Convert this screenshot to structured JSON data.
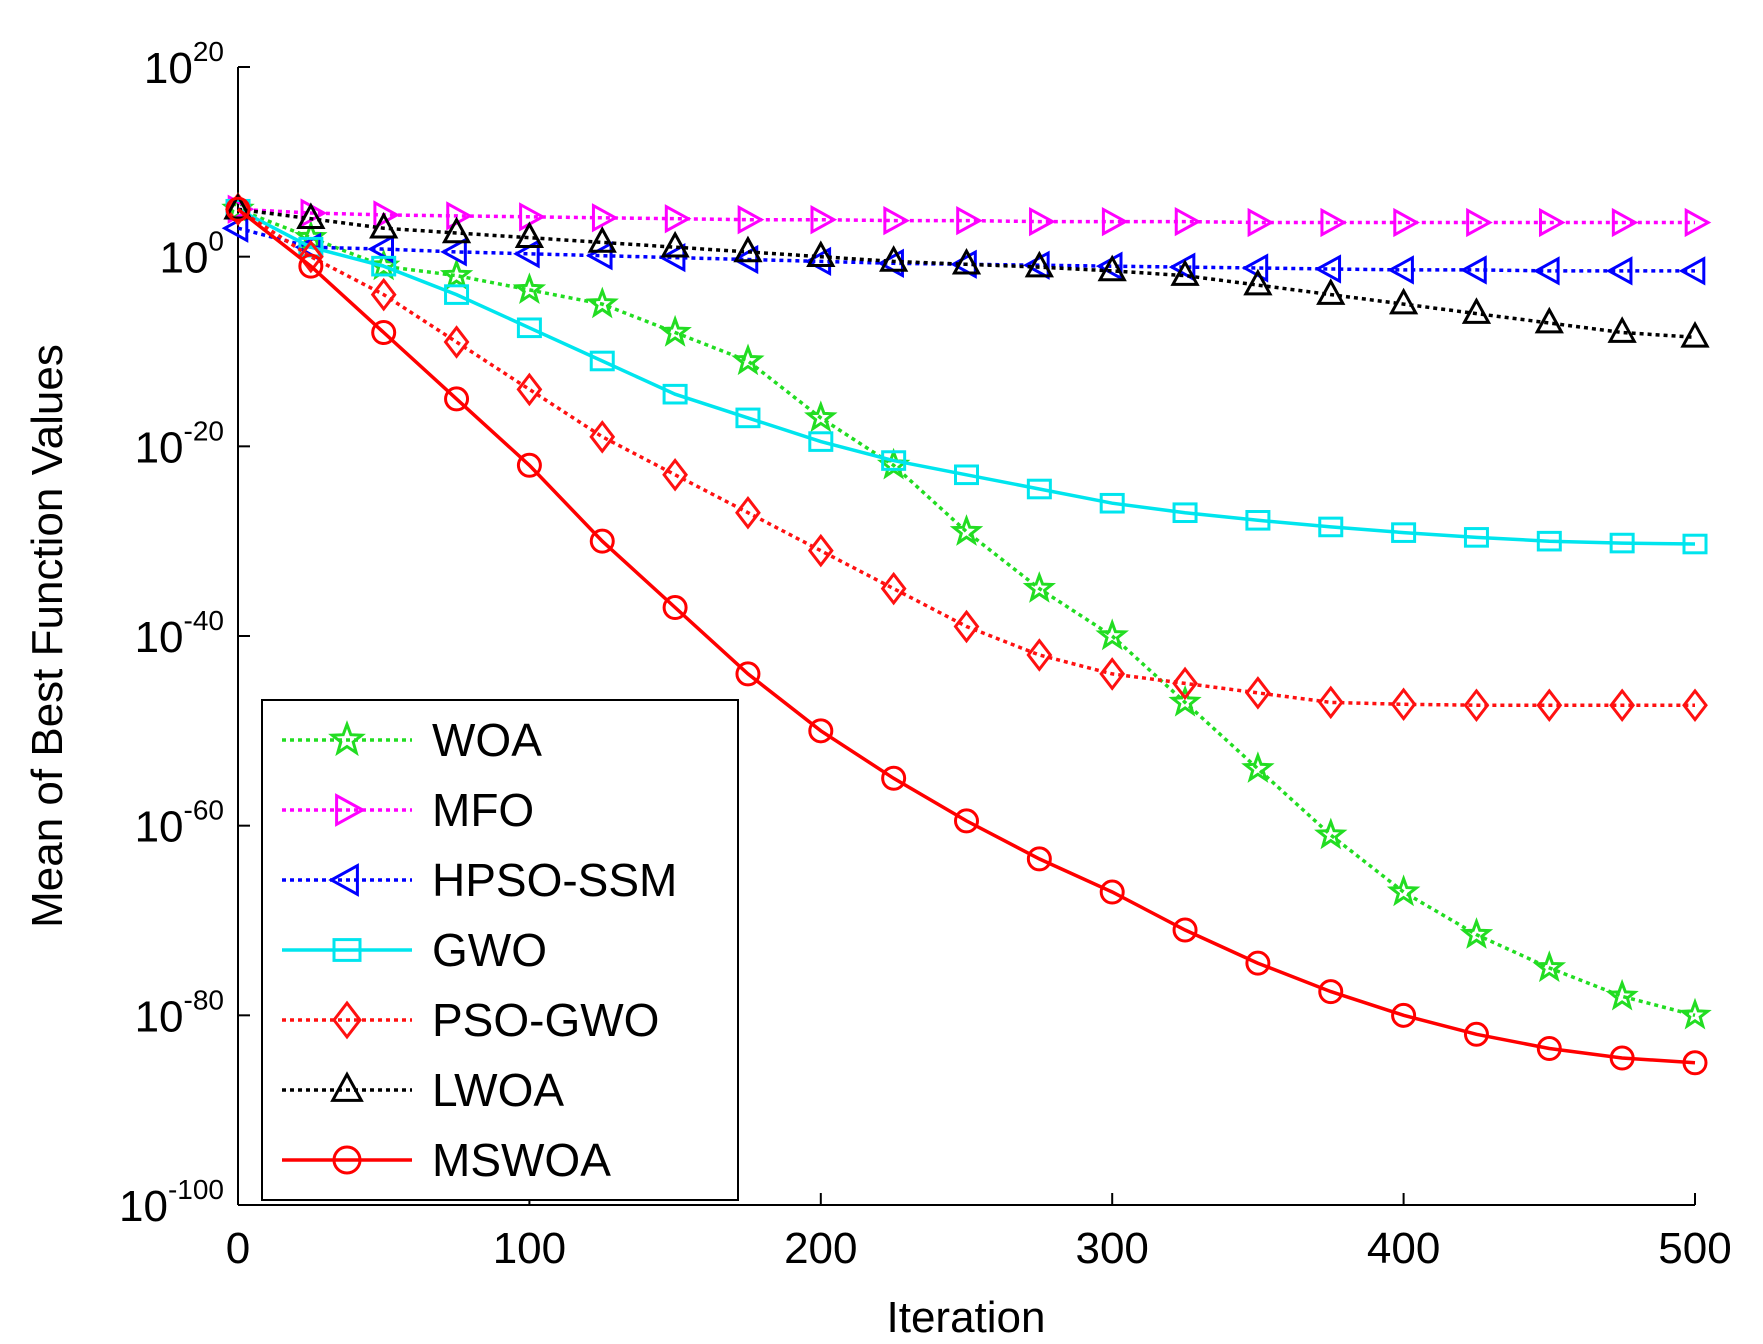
{
  "chart_data": {
    "type": "line",
    "title": "",
    "xlabel": "Iteration",
    "ylabel": "Mean of Best Function Values",
    "xlim": [
      0,
      500
    ],
    "ylim_log10": [
      -100,
      20
    ],
    "yscale": "log",
    "x_ticks": [
      "0",
      "100",
      "200",
      "300",
      "400",
      "500"
    ],
    "y_ticks": [
      {
        "base": "10",
        "exp": "20",
        "log10": 20
      },
      {
        "base": "10",
        "exp": "0",
        "log10": 0
      },
      {
        "base": "10",
        "exp": "-20",
        "log10": -20
      },
      {
        "base": "10",
        "exp": "-40",
        "log10": -40
      },
      {
        "base": "10",
        "exp": "-60",
        "log10": -60
      },
      {
        "base": "10",
        "exp": "-80",
        "log10": -80
      },
      {
        "base": "10",
        "exp": "-100",
        "log10": -100
      }
    ],
    "legend_position": "lower-left",
    "x": [
      0,
      25,
      50,
      75,
      100,
      125,
      150,
      175,
      200,
      225,
      250,
      275,
      300,
      325,
      350,
      375,
      400,
      425,
      450,
      475,
      500
    ],
    "series": [
      {
        "name": "WOA",
        "color": "#22dd22",
        "dash": "dotted",
        "marker": "star",
        "log10_values": [
          5,
          2,
          -1,
          -2,
          -3.5,
          -5,
          -8,
          -11,
          -17,
          -22,
          -29,
          -35,
          -40,
          -47,
          -54,
          -61,
          -67,
          -71.5,
          -75,
          -78,
          -80
        ]
      },
      {
        "name": "MFO",
        "color": "#ff00ff",
        "dash": "dotted",
        "marker": "triangle-right",
        "log10_values": [
          5,
          4.6,
          4.4,
          4.3,
          4.2,
          4.1,
          4,
          3.9,
          3.9,
          3.8,
          3.8,
          3.7,
          3.7,
          3.7,
          3.6,
          3.6,
          3.6,
          3.6,
          3.6,
          3.6,
          3.6
        ]
      },
      {
        "name": "HPSO-SSM",
        "color": "#0000ff",
        "dash": "dotted",
        "marker": "triangle-left",
        "log10_values": [
          3,
          1,
          0.8,
          0.5,
          0.3,
          0.1,
          -0.1,
          -0.3,
          -0.5,
          -0.7,
          -0.8,
          -0.9,
          -1,
          -1.1,
          -1.2,
          -1.3,
          -1.4,
          -1.4,
          -1.5,
          -1.5,
          -1.5
        ]
      },
      {
        "name": "GWO",
        "color": "#00e5ee",
        "dash": "solid",
        "marker": "square",
        "log10_values": [
          5,
          1,
          -1,
          -4,
          -7.5,
          -11,
          -14.5,
          -17,
          -19.5,
          -21.5,
          -23,
          -24.5,
          -26,
          -27,
          -27.8,
          -28.5,
          -29.1,
          -29.6,
          -30,
          -30.2,
          -30.3
        ]
      },
      {
        "name": "PSO-GWO",
        "color": "#ff1111",
        "dash": "dotted",
        "marker": "diamond",
        "log10_values": [
          5,
          0,
          -4,
          -9,
          -14,
          -19,
          -23,
          -27,
          -31,
          -35,
          -39,
          -42,
          -44,
          -45,
          -46,
          -47,
          -47.2,
          -47.3,
          -47.3,
          -47.3,
          -47.3
        ]
      },
      {
        "name": "LWOA",
        "color": "#000000",
        "dash": "dotted",
        "marker": "triangle-up",
        "log10_values": [
          5,
          4,
          3,
          2.5,
          2,
          1.5,
          1,
          0.5,
          0,
          -0.5,
          -0.8,
          -1.1,
          -1.5,
          -2,
          -3,
          -4,
          -5,
          -6,
          -7,
          -8,
          -8.5
        ]
      },
      {
        "name": "MSWOA",
        "color": "#ff0000",
        "dash": "solid",
        "marker": "circle",
        "log10_values": [
          5,
          -1,
          -8,
          -15,
          -22,
          -30,
          -37,
          -44,
          -50,
          -55,
          -59.5,
          -63.5,
          -67,
          -71,
          -74.5,
          -77.5,
          -80,
          -82,
          -83.5,
          -84.5,
          -85
        ]
      }
    ]
  }
}
